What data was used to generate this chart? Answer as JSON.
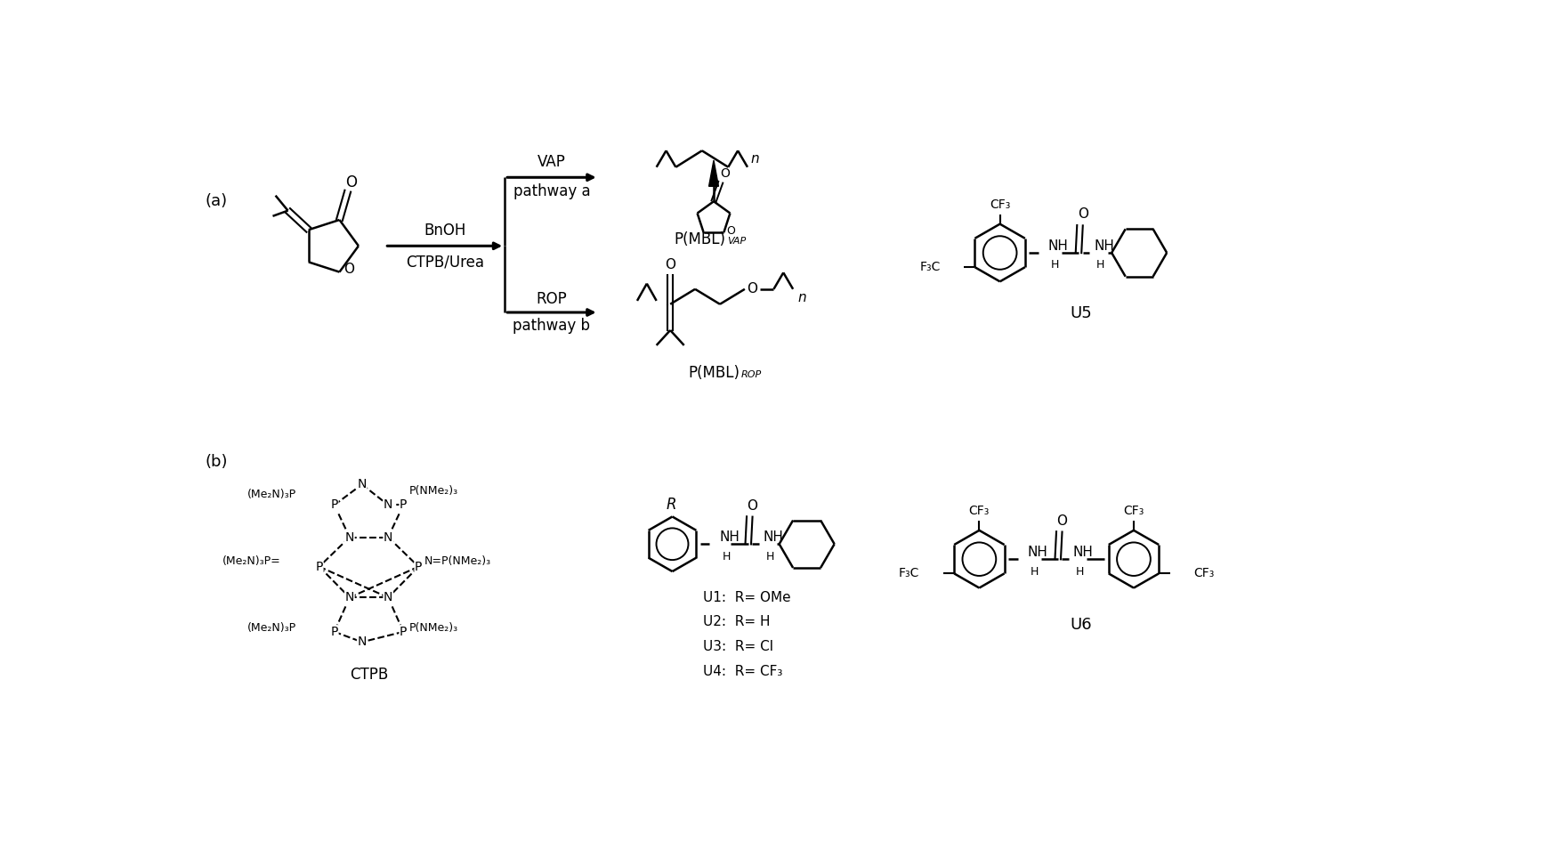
{
  "bg_color": "#ffffff",
  "label_a": "(a)",
  "label_b": "(b)",
  "bnoh": "BnOH",
  "ctpb_urea": "CTPB/Urea",
  "vap": "VAP",
  "pathway_a": "pathway a",
  "rop": "ROP",
  "pathway_b": "pathway b",
  "pmbl_vap": "P(MBL)",
  "vap_sub": "VAP",
  "pmbl_rop": "P(MBL)",
  "rop_sub": "ROP",
  "ctpb": "CTPB",
  "u1": "U1:  R= OMe",
  "u2": "U2:  R= H",
  "u3": "U3:  R= Cl",
  "u4": "U4:  R= CF₃",
  "u5": "U5",
  "u6": "U6",
  "r_label": "R"
}
